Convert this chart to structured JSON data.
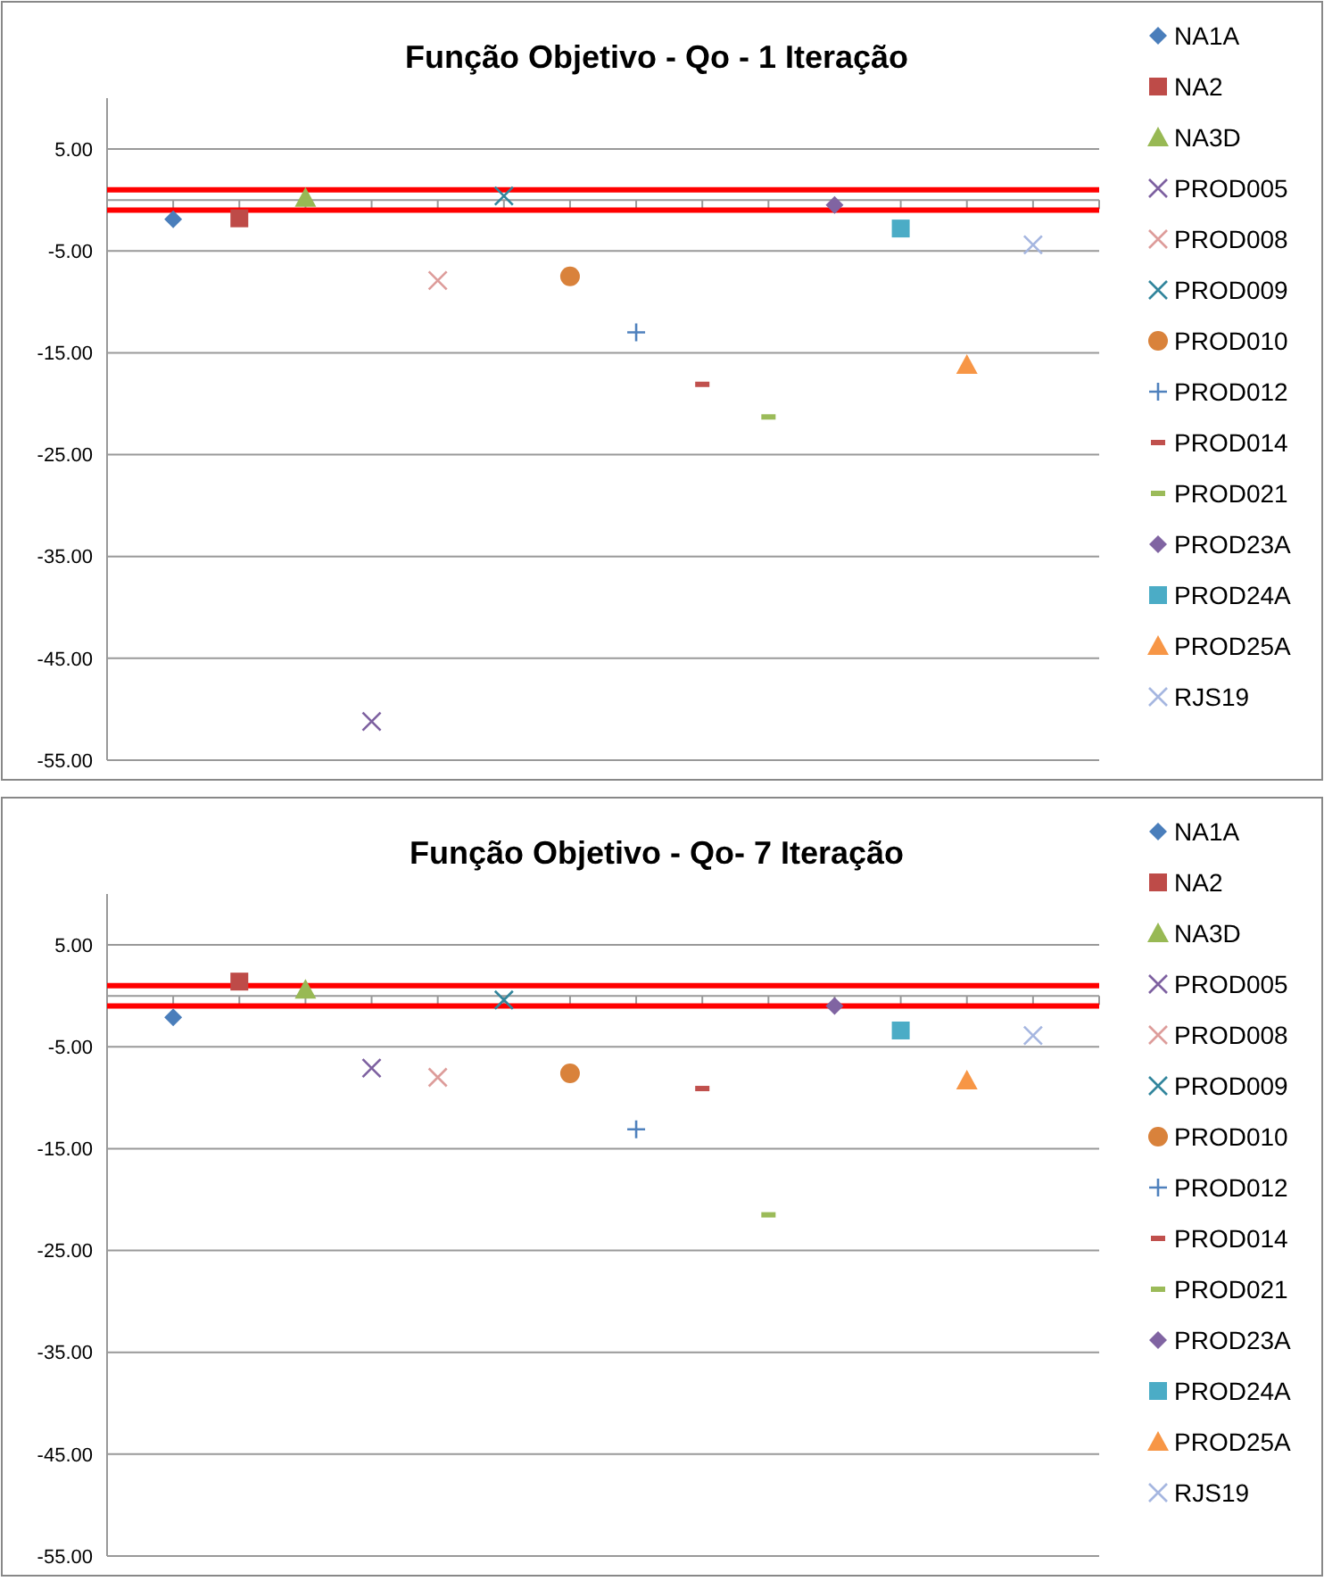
{
  "chart_data": [
    {
      "type": "scatter",
      "title": "Função Objetivo - Qo - 1 Iteração",
      "legend": "right",
      "grid": "y",
      "categories": [
        null,
        null,
        null,
        null,
        null,
        null,
        null,
        null,
        null,
        null,
        null,
        null,
        null,
        null
      ],
      "ylim": [
        -55,
        10
      ],
      "yticks": [
        {
          "value": 5,
          "label": "5.00"
        },
        {
          "value": -5,
          "label": "-5.00"
        },
        {
          "value": -15,
          "label": "-15.00"
        },
        {
          "value": -25,
          "label": "-25.00"
        },
        {
          "value": -35,
          "label": "-35.00"
        },
        {
          "value": -45,
          "label": "-45.00"
        },
        {
          "value": -55,
          "label": "-55.00"
        }
      ],
      "ref_lines": [
        {
          "axis": "y",
          "value": 1,
          "color": "#ff0000"
        },
        {
          "axis": "y",
          "value": -1,
          "color": "#ff0000"
        }
      ],
      "series": [
        {
          "name": "NA1A",
          "color": "#4a7ebb",
          "marker": "diamond",
          "values": [
            -1.9,
            null,
            null,
            null,
            null,
            null,
            null,
            null,
            null,
            null,
            null,
            null,
            null,
            null
          ]
        },
        {
          "name": "NA2",
          "color": "#be4b48",
          "marker": "square",
          "values": [
            null,
            -1.8,
            null,
            null,
            null,
            null,
            null,
            null,
            null,
            null,
            null,
            null,
            null,
            null
          ]
        },
        {
          "name": "NA3D",
          "color": "#98b954",
          "marker": "triangle",
          "values": [
            null,
            null,
            0.2,
            null,
            null,
            null,
            null,
            null,
            null,
            null,
            null,
            null,
            null,
            null
          ]
        },
        {
          "name": "PROD005",
          "color": "#7d60a0",
          "marker": "cross",
          "values": [
            null,
            null,
            null,
            -51.2,
            null,
            null,
            null,
            null,
            null,
            null,
            null,
            null,
            null,
            null
          ]
        },
        {
          "name": "PROD008",
          "color": "#dd9c9a",
          "marker": "cross",
          "values": [
            null,
            null,
            null,
            null,
            -7.9,
            null,
            null,
            null,
            null,
            null,
            null,
            null,
            null,
            null
          ]
        },
        {
          "name": "PROD009",
          "color": "#31859c",
          "marker": "cross",
          "values": [
            null,
            null,
            null,
            null,
            null,
            0.4,
            null,
            null,
            null,
            null,
            null,
            null,
            null,
            null
          ]
        },
        {
          "name": "PROD010",
          "color": "#d9823b",
          "marker": "circle",
          "values": [
            null,
            null,
            null,
            null,
            null,
            null,
            -7.5,
            null,
            null,
            null,
            null,
            null,
            null,
            null
          ]
        },
        {
          "name": "PROD012",
          "color": "#4f81bd",
          "marker": "plus",
          "values": [
            null,
            null,
            null,
            null,
            null,
            null,
            null,
            -13.0,
            null,
            null,
            null,
            null,
            null,
            null
          ]
        },
        {
          "name": "PROD014",
          "color": "#c0504d",
          "values": [
            null,
            null,
            null,
            null,
            null,
            null,
            null,
            null,
            -18.1,
            null,
            null,
            null,
            null,
            null
          ]
        },
        {
          "name": "PROD021",
          "color": "#9bbb59",
          "values": [
            null,
            null,
            null,
            null,
            null,
            null,
            null,
            null,
            null,
            -21.3,
            null,
            null,
            null,
            null
          ]
        },
        {
          "name": "PROD23A",
          "color": "#8064a2",
          "marker": "diamond",
          "values": [
            null,
            null,
            null,
            null,
            null,
            null,
            null,
            null,
            null,
            null,
            -0.5,
            null,
            null,
            null
          ]
        },
        {
          "name": "PROD24A",
          "color": "#4bacc6",
          "marker": "square",
          "values": [
            null,
            null,
            null,
            null,
            null,
            null,
            null,
            null,
            null,
            null,
            null,
            -2.8,
            null,
            null
          ]
        },
        {
          "name": "PROD25A",
          "color": "#f79646",
          "marker": "triangle",
          "values": [
            null,
            null,
            null,
            null,
            null,
            null,
            null,
            null,
            null,
            null,
            null,
            null,
            -16.2,
            null
          ]
        },
        {
          "name": "RJS19",
          "color": "#a5b6e0",
          "marker": "cross",
          "values": [
            null,
            null,
            null,
            null,
            null,
            null,
            null,
            null,
            null,
            null,
            null,
            null,
            null,
            -4.4
          ]
        }
      ]
    },
    {
      "type": "scatter",
      "title": "Função Objetivo - Qo- 7 Iteração",
      "legend": "right",
      "grid": "y",
      "categories": [
        null,
        null,
        null,
        null,
        null,
        null,
        null,
        null,
        null,
        null,
        null,
        null,
        null,
        null
      ],
      "ylim": [
        -55,
        10
      ],
      "yticks": [
        {
          "value": 5,
          "label": "5.00"
        },
        {
          "value": -5,
          "label": "-5.00"
        },
        {
          "value": -15,
          "label": "-15.00"
        },
        {
          "value": -25,
          "label": "-25.00"
        },
        {
          "value": -35,
          "label": "-35.00"
        },
        {
          "value": -45,
          "label": "-45.00"
        },
        {
          "value": -55,
          "label": "-55.00"
        }
      ],
      "ref_lines": [
        {
          "axis": "y",
          "value": 1,
          "color": "#ff0000"
        },
        {
          "axis": "y",
          "value": -1,
          "color": "#ff0000"
        }
      ],
      "series": [
        {
          "name": "NA1A",
          "color": "#4a7ebb",
          "marker": "diamond",
          "values": [
            -2.1,
            null,
            null,
            null,
            null,
            null,
            null,
            null,
            null,
            null,
            null,
            null,
            null,
            null
          ]
        },
        {
          "name": "NA2",
          "color": "#be4b48",
          "marker": "square",
          "values": [
            null,
            1.4,
            null,
            null,
            null,
            null,
            null,
            null,
            null,
            null,
            null,
            null,
            null,
            null
          ]
        },
        {
          "name": "NA3D",
          "color": "#98b954",
          "marker": "triangle",
          "values": [
            null,
            null,
            0.6,
            null,
            null,
            null,
            null,
            null,
            null,
            null,
            null,
            null,
            null,
            null
          ]
        },
        {
          "name": "PROD005",
          "color": "#7d60a0",
          "marker": "cross",
          "values": [
            null,
            null,
            null,
            -7.1,
            null,
            null,
            null,
            null,
            null,
            null,
            null,
            null,
            null,
            null
          ]
        },
        {
          "name": "PROD008",
          "color": "#dd9c9a",
          "marker": "cross",
          "values": [
            null,
            null,
            null,
            null,
            -8.0,
            null,
            null,
            null,
            null,
            null,
            null,
            null,
            null,
            null
          ]
        },
        {
          "name": "PROD009",
          "color": "#31859c",
          "marker": "cross",
          "values": [
            null,
            null,
            null,
            null,
            null,
            -0.4,
            null,
            null,
            null,
            null,
            null,
            null,
            null,
            null
          ]
        },
        {
          "name": "PROD010",
          "color": "#d9823b",
          "marker": "circle",
          "values": [
            null,
            null,
            null,
            null,
            null,
            null,
            -7.6,
            null,
            null,
            null,
            null,
            null,
            null,
            null
          ]
        },
        {
          "name": "PROD012",
          "color": "#4f81bd",
          "marker": "plus",
          "values": [
            null,
            null,
            null,
            null,
            null,
            null,
            null,
            -13.1,
            null,
            null,
            null,
            null,
            null,
            null
          ]
        },
        {
          "name": "PROD014",
          "color": "#c0504d",
          "values": [
            null,
            null,
            null,
            null,
            null,
            null,
            null,
            null,
            -9.1,
            null,
            null,
            null,
            null,
            null
          ]
        },
        {
          "name": "PROD021",
          "color": "#9bbb59",
          "values": [
            null,
            null,
            null,
            null,
            null,
            null,
            null,
            null,
            null,
            -21.5,
            null,
            null,
            null,
            null
          ]
        },
        {
          "name": "PROD23A",
          "color": "#8064a2",
          "marker": "diamond",
          "values": [
            null,
            null,
            null,
            null,
            null,
            null,
            null,
            null,
            null,
            null,
            -1.0,
            null,
            null,
            null
          ]
        },
        {
          "name": "PROD24A",
          "color": "#4bacc6",
          "marker": "square",
          "values": [
            null,
            null,
            null,
            null,
            null,
            null,
            null,
            null,
            null,
            null,
            null,
            -3.4,
            null,
            null
          ]
        },
        {
          "name": "PROD25A",
          "color": "#f79646",
          "marker": "triangle",
          "values": [
            null,
            null,
            null,
            null,
            null,
            null,
            null,
            null,
            null,
            null,
            null,
            null,
            -8.3,
            null
          ]
        },
        {
          "name": "RJS19",
          "color": "#a5b6e0",
          "marker": "cross",
          "values": [
            null,
            null,
            null,
            null,
            null,
            null,
            null,
            null,
            null,
            null,
            null,
            null,
            null,
            -3.9
          ]
        }
      ]
    }
  ]
}
